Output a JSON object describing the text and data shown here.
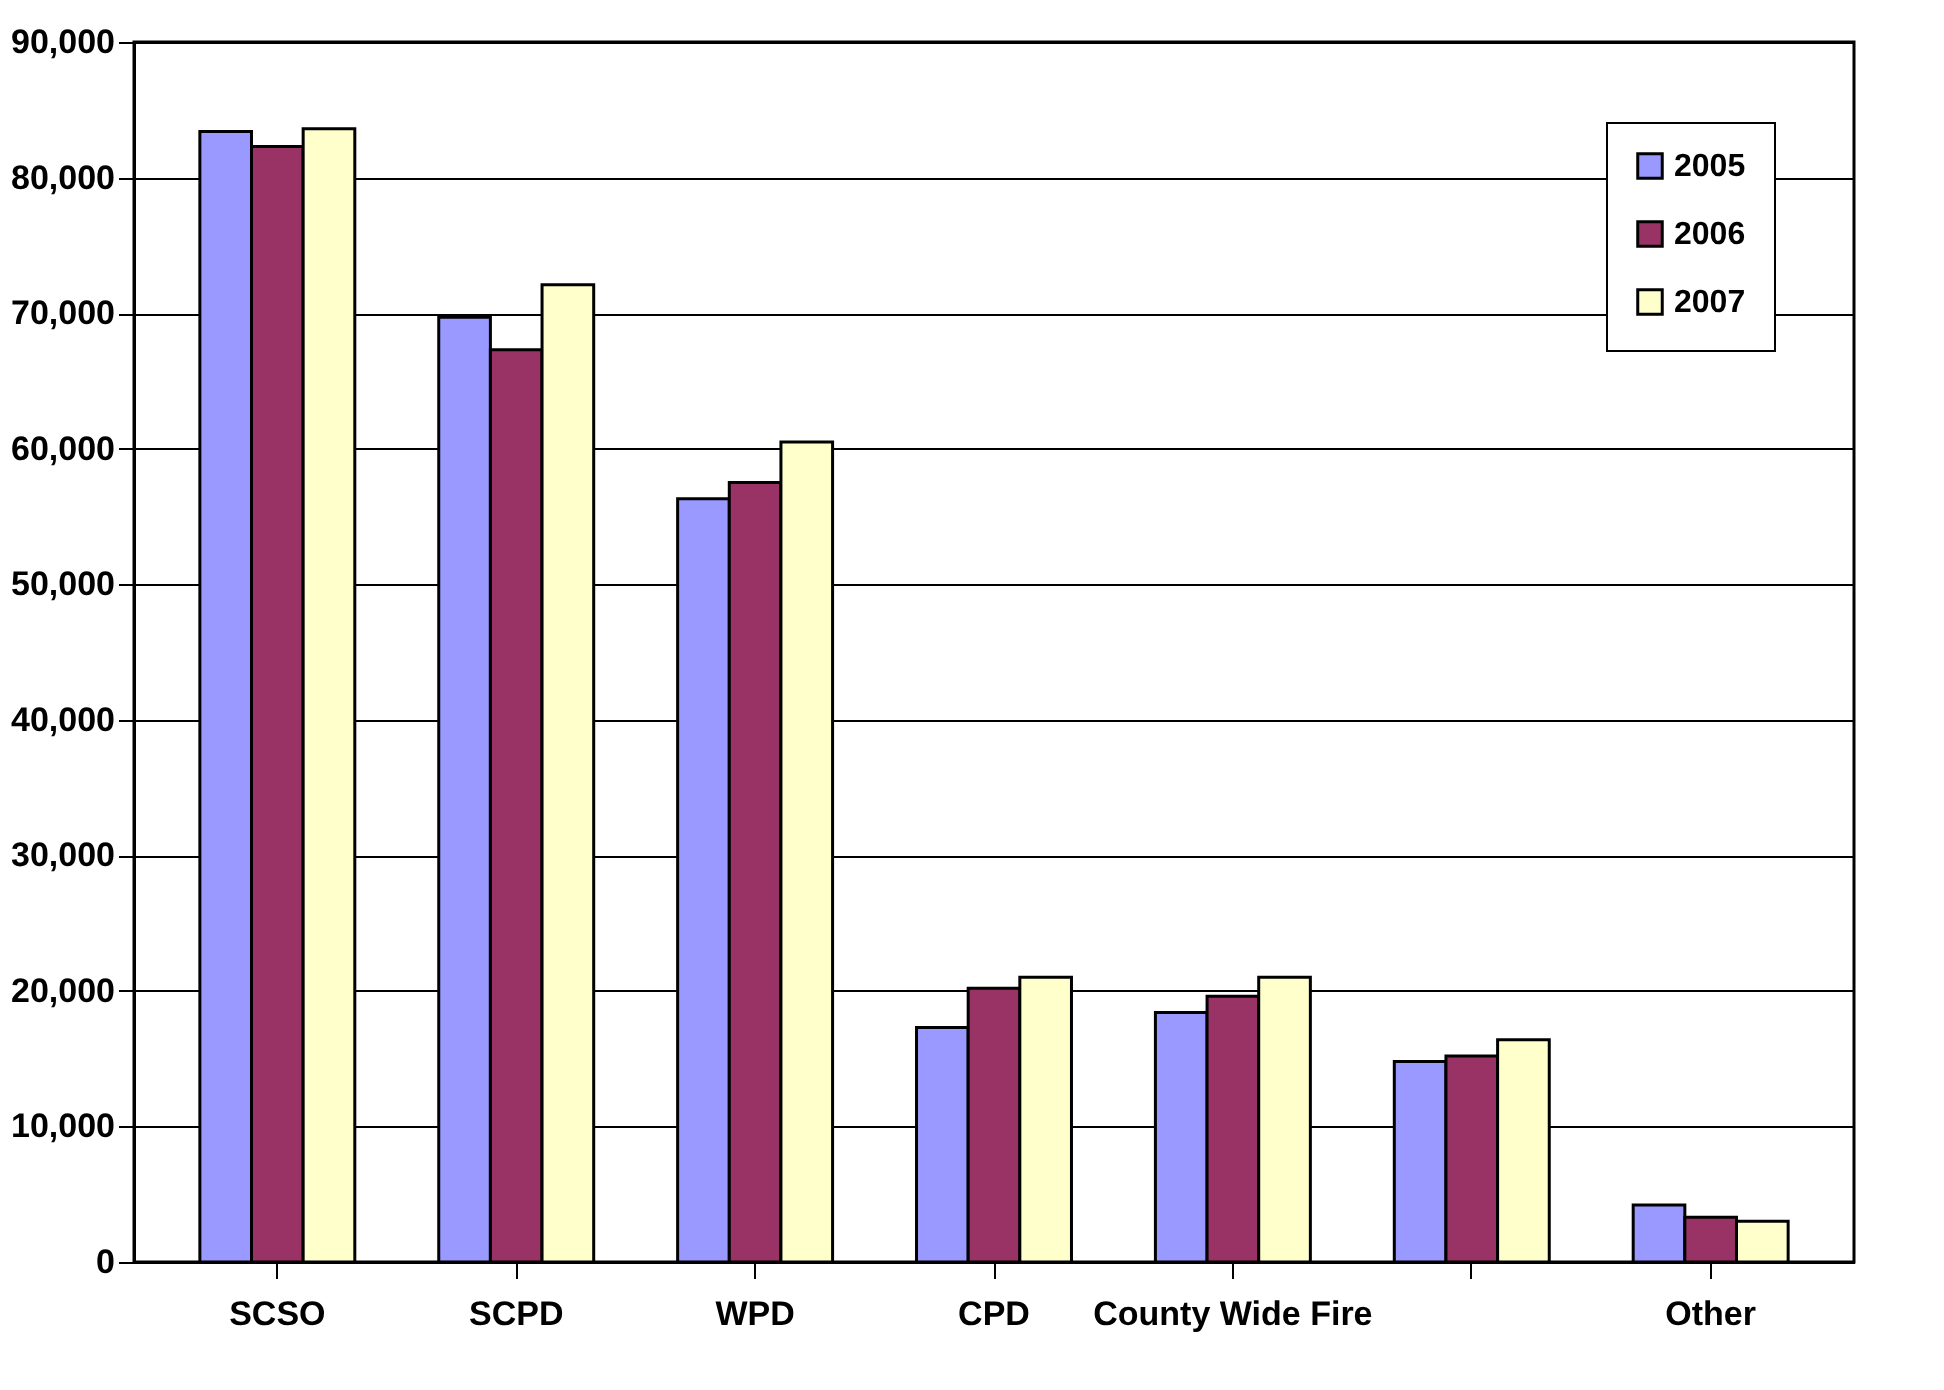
{
  "chart_data": {
    "type": "bar",
    "categories": [
      "SCSO",
      "SCPD",
      "WPD",
      "CPD",
      "County Wide Fire",
      null,
      "Other"
    ],
    "series": [
      {
        "name": "2005",
        "color": "#9999ff",
        "values": [
          83400,
          69700,
          56300,
          17300,
          18400,
          14800,
          4200
        ]
      },
      {
        "name": "2006",
        "color": "#993366",
        "values": [
          82300,
          67300,
          57500,
          20200,
          19600,
          15200,
          3300
        ]
      },
      {
        "name": "2007",
        "color": "#ffffcc",
        "values": [
          83600,
          72100,
          60500,
          21000,
          21000,
          16400,
          3000
        ]
      }
    ],
    "ylim": [
      0,
      90000
    ],
    "yticks": [
      0,
      {
        "value": 10000,
        "label": "10,000"
      },
      {
        "value": 20000,
        "label": "20,000"
      },
      {
        "value": 30000,
        "label": "30,000"
      },
      {
        "value": 40000,
        "label": "40,000"
      },
      {
        "value": 50000,
        "label": "50,000"
      },
      {
        "value": 60000,
        "label": "60,000"
      },
      {
        "value": 70000,
        "label": "70,000"
      },
      {
        "value": 80000,
        "label": "80,000"
      },
      {
        "value": 90000,
        "label": "90,000"
      }
    ],
    "grid": "y",
    "legend": "top right"
  }
}
